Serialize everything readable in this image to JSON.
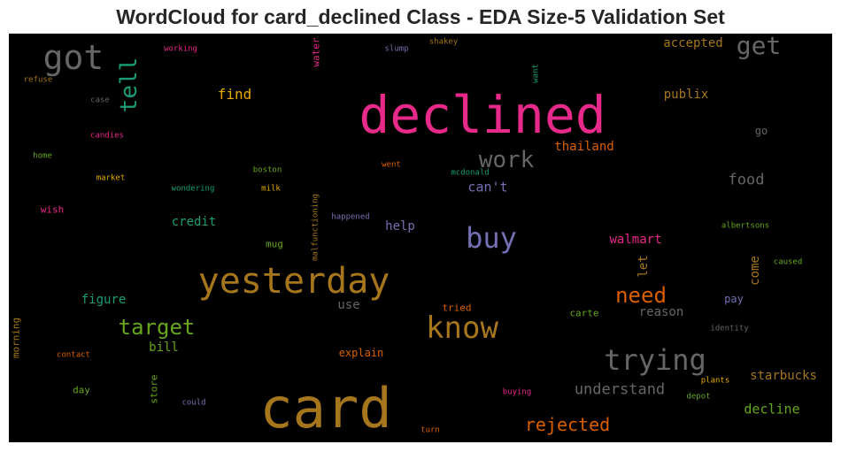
{
  "title": "WordCloud for card_declined Class - EDA Size-5 Validation Set",
  "palette": {
    "background": "#000000",
    "pink": "#e7298a",
    "orange": "#d95f02",
    "gold": "#a6761d",
    "yellow": "#e6ab02",
    "green": "#66a61e",
    "teal": "#1b9e77",
    "purple": "#7570b3",
    "gray": "#666666"
  },
  "words": [
    {
      "text": "declined",
      "color": "#e7298a"
    },
    {
      "text": "card",
      "color": "#a6761d"
    },
    {
      "text": "yesterday",
      "color": "#a6761d"
    },
    {
      "text": "got",
      "color": "#666666"
    },
    {
      "text": "tell",
      "color": "#1b9e77"
    },
    {
      "text": "get",
      "color": "#666666"
    },
    {
      "text": "know",
      "color": "#a6761d"
    },
    {
      "text": "buy",
      "color": "#7570b3"
    },
    {
      "text": "trying",
      "color": "#666666"
    },
    {
      "text": "work",
      "color": "#666666"
    },
    {
      "text": "target",
      "color": "#66a61e"
    },
    {
      "text": "need",
      "color": "#d95f02"
    },
    {
      "text": "rejected",
      "color": "#d95f02"
    },
    {
      "text": "understand",
      "color": "#666666"
    },
    {
      "text": "food",
      "color": "#666666"
    },
    {
      "text": "find",
      "color": "#e6ab02"
    },
    {
      "text": "accepted",
      "color": "#a6761d"
    },
    {
      "text": "publix",
      "color": "#a6761d"
    },
    {
      "text": "thailand",
      "color": "#d95f02"
    },
    {
      "text": "can't",
      "color": "#7570b3"
    },
    {
      "text": "walmart",
      "color": "#e7298a"
    },
    {
      "text": "let",
      "color": "#a6761d"
    },
    {
      "text": "come",
      "color": "#a6761d"
    },
    {
      "text": "decline",
      "color": "#66a61e"
    },
    {
      "text": "starbucks",
      "color": "#a6761d"
    },
    {
      "text": "reason",
      "color": "#666666"
    },
    {
      "text": "figure",
      "color": "#1b9e77"
    },
    {
      "text": "credit",
      "color": "#1b9e77"
    },
    {
      "text": "help",
      "color": "#7570b3"
    },
    {
      "text": "use",
      "color": "#666666"
    },
    {
      "text": "bill",
      "color": "#66a61e"
    },
    {
      "text": "explain",
      "color": "#d95f02"
    },
    {
      "text": "go",
      "color": "#666666"
    },
    {
      "text": "pay",
      "color": "#7570b3"
    },
    {
      "text": "carte",
      "color": "#66a61e"
    },
    {
      "text": "mug",
      "color": "#66a61e"
    },
    {
      "text": "wish",
      "color": "#e7298a"
    },
    {
      "text": "day",
      "color": "#66a61e"
    },
    {
      "text": "tried",
      "color": "#d95f02"
    },
    {
      "text": "water",
      "color": "#e7298a"
    },
    {
      "text": "store",
      "color": "#66a61e"
    },
    {
      "text": "morning",
      "color": "#a6761d"
    },
    {
      "text": "working",
      "color": "#e7298a"
    },
    {
      "text": "refuse",
      "color": "#a6761d"
    },
    {
      "text": "case",
      "color": "#666666"
    },
    {
      "text": "candies",
      "color": "#e7298a"
    },
    {
      "text": "home",
      "color": "#66a61e"
    },
    {
      "text": "market",
      "color": "#e6ab02"
    },
    {
      "text": "wondering",
      "color": "#1b9e77"
    },
    {
      "text": "milk",
      "color": "#e6ab02"
    },
    {
      "text": "boston",
      "color": "#66a61e"
    },
    {
      "text": "slump",
      "color": "#7570b3"
    },
    {
      "text": "shakey",
      "color": "#a6761d"
    },
    {
      "text": "want",
      "color": "#1b9e77"
    },
    {
      "text": "went",
      "color": "#d95f02"
    },
    {
      "text": "mcdonald",
      "color": "#1b9e77"
    },
    {
      "text": "malfunctioning",
      "color": "#a6761d"
    },
    {
      "text": "happened",
      "color": "#7570b3"
    },
    {
      "text": "albertsons",
      "color": "#66a61e"
    },
    {
      "text": "caused",
      "color": "#66a61e"
    },
    {
      "text": "identity",
      "color": "#666666"
    },
    {
      "text": "plants",
      "color": "#e6ab02"
    },
    {
      "text": "depot",
      "color": "#66a61e"
    },
    {
      "text": "buying",
      "color": "#e7298a"
    },
    {
      "text": "turn",
      "color": "#d95f02"
    },
    {
      "text": "contact",
      "color": "#d95f02"
    },
    {
      "text": "could",
      "color": "#7570b3"
    }
  ]
}
